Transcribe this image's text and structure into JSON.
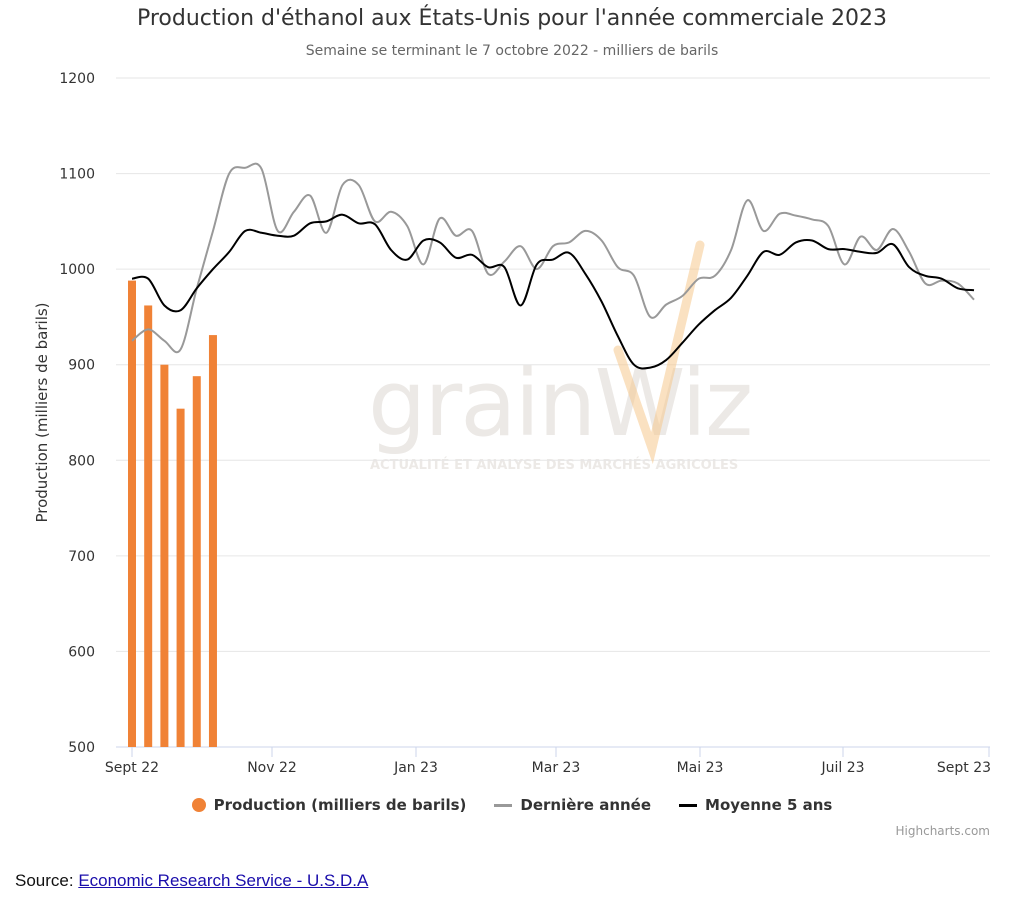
{
  "title": "Production d'éthanol aux États-Unis pour l'année commerciale 2023",
  "subtitle": "Semaine se terminant le 7 octobre 2022 - milliers de barils",
  "credits": "Highcharts.com",
  "source": {
    "label": "Source: ",
    "link_text": "Economic Research Service - U.S.D.A"
  },
  "watermark": {
    "main": "grainWiz",
    "sub": "ACTUALITÉ ET ANALYSE DES MARCHÉS AGRICOLES"
  },
  "colors": {
    "production": "#f08236",
    "derniere": "#999999",
    "moyenne": "#000000",
    "grid": "#e6e6e6",
    "accent": "#f5c98e"
  },
  "chart_data": {
    "type": "bar",
    "title": "Production d'éthanol aux États-Unis pour l'année commerciale 2023",
    "ylabel": "Production (milliers de barils)",
    "ylim": [
      500,
      1200
    ],
    "yticks": [
      500,
      600,
      700,
      800,
      900,
      1000,
      1100,
      1200
    ],
    "x_ticks": [
      "Sept 22",
      "Nov 22",
      "Jan 23",
      "Mar 23",
      "Mai 23",
      "Juil 23",
      "Sept 23"
    ],
    "x_week_range": [
      0,
      52
    ],
    "grid": true,
    "legend_position": "bottom",
    "series": [
      {
        "name": "Production (milliers de barils)",
        "type": "bar",
        "x": [
          0,
          1,
          2,
          3,
          4,
          5
        ],
        "values": [
          988,
          962,
          900,
          854,
          888,
          931
        ]
      },
      {
        "name": "Dernière année",
        "type": "line",
        "x": [
          0,
          1,
          2,
          3,
          4,
          5,
          6,
          7,
          8,
          9,
          10,
          11,
          12,
          13,
          14,
          15,
          16,
          17,
          18,
          19,
          20,
          21,
          22,
          23,
          24,
          25,
          26,
          27,
          28,
          29,
          30,
          31,
          32,
          33,
          34,
          35,
          36,
          37,
          38,
          39,
          40,
          41,
          42,
          43,
          44,
          45,
          46,
          47,
          48,
          49,
          50,
          51,
          52
        ],
        "values": [
          925,
          937,
          925,
          916,
          980,
          1040,
          1100,
          1106,
          1105,
          1040,
          1060,
          1077,
          1038,
          1088,
          1088,
          1050,
          1060,
          1045,
          1005,
          1053,
          1035,
          1040,
          995,
          1008,
          1024,
          1000,
          1024,
          1028,
          1040,
          1030,
          1002,
          993,
          950,
          963,
          972,
          990,
          993,
          1020,
          1072,
          1040,
          1058,
          1056,
          1052,
          1045,
          1005,
          1034,
          1020,
          1042,
          1018,
          985,
          988,
          985,
          968
        ]
      },
      {
        "name": "Moyenne 5 ans",
        "type": "line",
        "x": [
          0,
          1,
          2,
          3,
          4,
          5,
          6,
          7,
          8,
          9,
          10,
          11,
          12,
          13,
          14,
          15,
          16,
          17,
          18,
          19,
          20,
          21,
          22,
          23,
          24,
          25,
          26,
          27,
          28,
          29,
          30,
          31,
          32,
          33,
          34,
          35,
          36,
          37,
          38,
          39,
          40,
          41,
          42,
          43,
          44,
          45,
          46,
          47,
          48,
          49,
          50,
          51,
          52
        ],
        "values": [
          990,
          990,
          962,
          957,
          980,
          1000,
          1018,
          1040,
          1038,
          1035,
          1035,
          1048,
          1050,
          1057,
          1048,
          1047,
          1020,
          1010,
          1030,
          1028,
          1012,
          1015,
          1002,
          1002,
          962,
          1005,
          1010,
          1017,
          995,
          966,
          930,
          900,
          897,
          905,
          923,
          942,
          957,
          970,
          993,
          1018,
          1015,
          1028,
          1030,
          1021,
          1021,
          1018,
          1017,
          1026,
          1002,
          993,
          990,
          980,
          978
        ]
      }
    ]
  }
}
